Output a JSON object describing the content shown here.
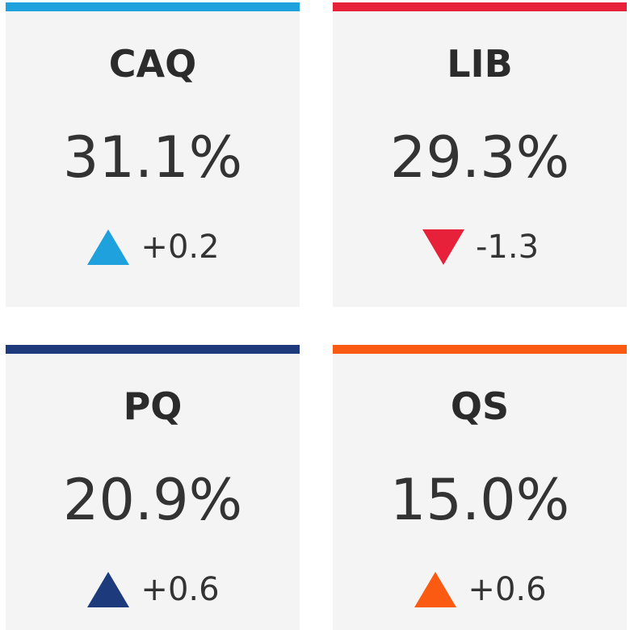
{
  "cards": [
    {
      "party": "CAQ",
      "share": "31.1%",
      "change": "+0.2",
      "direction": "up",
      "color": "#1ea1dc"
    },
    {
      "party": "LIB",
      "share": "29.3%",
      "change": "-1.3",
      "direction": "down",
      "color": "#e8213a"
    },
    {
      "party": "PQ",
      "share": "20.9%",
      "change": "+0.6",
      "direction": "up",
      "color": "#1d3a7c"
    },
    {
      "party": "QS",
      "share": "15.0%",
      "change": "+0.6",
      "direction": "up",
      "color": "#fb5a13"
    }
  ]
}
